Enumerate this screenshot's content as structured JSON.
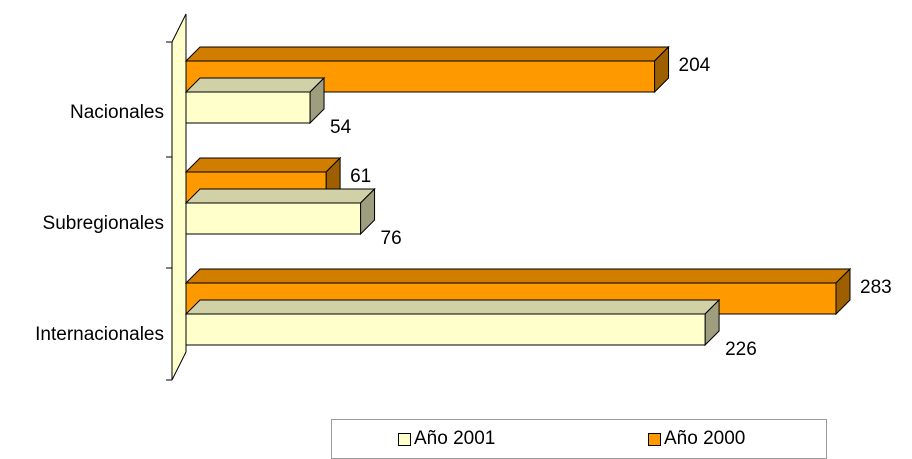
{
  "chart_data": {
    "type": "bar",
    "orientation": "horizontal",
    "three_d": true,
    "categories": [
      "Nacionales",
      "Subregionales",
      "Internacionales"
    ],
    "series": [
      {
        "name": "Año 2000",
        "values": [
          204,
          61,
          283
        ],
        "color": "#ff9900"
      },
      {
        "name": "Año 2001",
        "values": [
          54,
          76,
          226
        ],
        "color": "#ffffcc"
      }
    ],
    "xlim": [
      0,
      300
    ],
    "grid": false,
    "legend_position": "bottom",
    "wall_color": "#ffffcc"
  },
  "legend": {
    "items": [
      {
        "label": "Año 2001",
        "color": "#ffffcc"
      },
      {
        "label": "Año 2000",
        "color": "#ff9900"
      }
    ]
  }
}
